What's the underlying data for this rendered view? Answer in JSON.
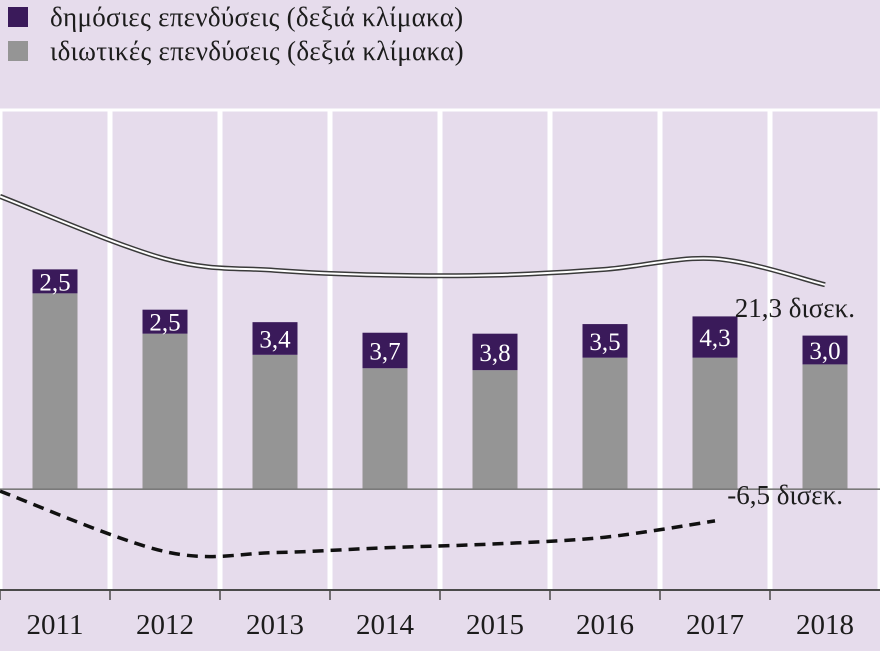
{
  "legend": {
    "public_label": "δημόσιες επενδύσεις (δεξιά κλίμακα)",
    "private_label": "ιδιωτικές επενδύσεις (δεξιά κλίμακα)"
  },
  "annotations": {
    "upper_line": "21,3 δισεκ.",
    "lower_line": "-6,5 δισεκ."
  },
  "colors": {
    "public": "#3a1a5a",
    "private": "#959595",
    "background": "#e6dcec"
  },
  "chart_data": {
    "type": "bar",
    "stacked": true,
    "categories": [
      "2011",
      "2012",
      "2013",
      "2014",
      "2015",
      "2016",
      "2017",
      "2018"
    ],
    "series": [
      {
        "name": "ιδιωτικές επενδύσεις (δεξιά κλίμακα)",
        "values": [
          20.4,
          16.2,
          14.0,
          12.6,
          12.4,
          13.7,
          13.7,
          13.0
        ]
      },
      {
        "name": "δημόσιες επενδύσεις (δεξιά κλίμακα)",
        "values": [
          2.5,
          2.5,
          3.4,
          3.7,
          3.8,
          3.5,
          4.3,
          3.0
        ],
        "labels": [
          "2,5",
          "2,5",
          "3,4",
          "3,7",
          "3,8",
          "3,5",
          "4,3",
          "3,0"
        ]
      }
    ],
    "lines": [
      {
        "values": [
          30.5,
          24.0,
          22.8,
          22.3,
          22.3,
          22.9,
          24.0,
          21.3
        ],
        "style": "double-solid"
      },
      {
        "values": [
          -0.2,
          -6.5,
          -6.6,
          -6.1,
          -5.7,
          -5.0,
          -3.3,
          null
        ],
        "style": "dashed"
      }
    ],
    "ylim": [
      -10.5,
      39.5
    ],
    "zero_line": true,
    "grid": "vertical",
    "legend_position": "top-left"
  }
}
